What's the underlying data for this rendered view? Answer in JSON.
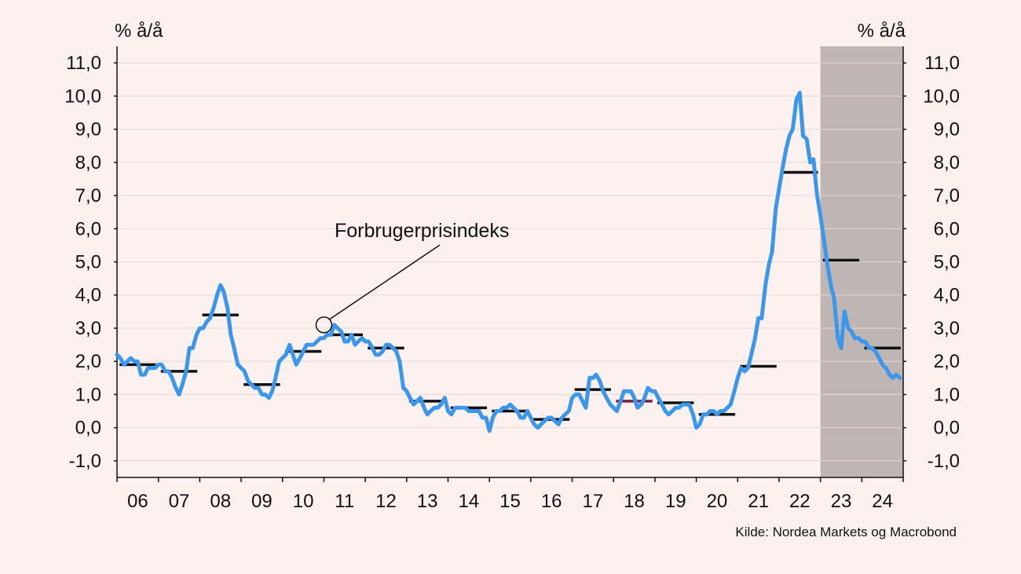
{
  "chart_data": {
    "type": "line",
    "left_unit": "% å/å",
    "right_unit": "% å/å",
    "ylim": [
      -1.5,
      11.5
    ],
    "yticks": [
      -1.0,
      0.0,
      1.0,
      2.0,
      3.0,
      4.0,
      5.0,
      6.0,
      7.0,
      8.0,
      9.0,
      10.0,
      11.0
    ],
    "ytick_labels": [
      "-1,0",
      "0,0",
      "1,0",
      "2,0",
      "3,0",
      "4,0",
      "5,0",
      "6,0",
      "7,0",
      "8,0",
      "9,0",
      "10,0",
      "11,0"
    ],
    "xlim": [
      2006.0,
      2025.0
    ],
    "xtick_labels": [
      "06",
      "07",
      "08",
      "09",
      "10",
      "11",
      "12",
      "13",
      "14",
      "15",
      "16",
      "17",
      "18",
      "19",
      "20",
      "21",
      "22",
      "23",
      "24"
    ],
    "grid": true,
    "shaded_region": {
      "from": 2023.0,
      "to": 2025.0,
      "color": "#bfb5b2"
    },
    "annotation": {
      "text": "Forbrugerprisindeks",
      "point": [
        2011.0,
        3.1
      ]
    },
    "source": "Kilde: Nordea Markets og Macrobond",
    "colors": {
      "line": "#3b97ec",
      "annual_avg": "#111111",
      "highlight_avg": "#7a1f3d"
    },
    "series": [
      {
        "x": [
          2006.0,
          2006.08,
          2006.17,
          2006.25,
          2006.33,
          2006.42,
          2006.5,
          2006.58,
          2006.67,
          2006.75,
          2006.83,
          2006.92,
          2007.0,
          2007.08,
          2007.17,
          2007.25,
          2007.33,
          2007.42,
          2007.5,
          2007.58,
          2007.67,
          2007.75,
          2007.83,
          2007.92,
          2008.0,
          2008.08,
          2008.17,
          2008.25,
          2008.33,
          2008.42,
          2008.5,
          2008.58,
          2008.67,
          2008.75,
          2008.83,
          2008.92,
          2009.0,
          2009.08,
          2009.17,
          2009.25,
          2009.33,
          2009.42,
          2009.5,
          2009.58,
          2009.67,
          2009.75,
          2009.83,
          2009.92,
          2010.0,
          2010.08,
          2010.17,
          2010.25,
          2010.33,
          2010.42,
          2010.5,
          2010.58,
          2010.67,
          2010.75,
          2010.83,
          2010.92,
          2011.0,
          2011.08,
          2011.17,
          2011.25,
          2011.33,
          2011.42,
          2011.5,
          2011.58,
          2011.67,
          2011.75,
          2011.83,
          2011.92,
          2012.0,
          2012.08,
          2012.17,
          2012.25,
          2012.33,
          2012.42,
          2012.5,
          2012.58,
          2012.67,
          2012.75,
          2012.83,
          2012.92,
          2013.0,
          2013.08,
          2013.17,
          2013.25,
          2013.33,
          2013.42,
          2013.5,
          2013.58,
          2013.67,
          2013.75,
          2013.83,
          2013.92,
          2014.0,
          2014.08,
          2014.17,
          2014.25,
          2014.33,
          2014.42,
          2014.5,
          2014.58,
          2014.67,
          2014.75,
          2014.83,
          2014.92,
          2015.0,
          2015.08,
          2015.17,
          2015.25,
          2015.33,
          2015.42,
          2015.5,
          2015.58,
          2015.67,
          2015.75,
          2015.83,
          2015.92,
          2016.0,
          2016.08,
          2016.17,
          2016.25,
          2016.33,
          2016.42,
          2016.5,
          2016.58,
          2016.67,
          2016.75,
          2016.83,
          2016.92,
          2017.0,
          2017.08,
          2017.17,
          2017.25,
          2017.33,
          2017.42,
          2017.5,
          2017.58,
          2017.67,
          2017.75,
          2017.83,
          2017.92,
          2018.0,
          2018.08,
          2018.17,
          2018.25,
          2018.33,
          2018.42,
          2018.5,
          2018.58,
          2018.67,
          2018.75,
          2018.83,
          2018.92,
          2019.0,
          2019.08,
          2019.17,
          2019.25,
          2019.33,
          2019.42,
          2019.5,
          2019.58,
          2019.67,
          2019.75,
          2019.83,
          2019.92,
          2020.0,
          2020.08,
          2020.17,
          2020.25,
          2020.33,
          2020.42,
          2020.5,
          2020.58,
          2020.67,
          2020.75,
          2020.83,
          2020.92,
          2021.0,
          2021.08,
          2021.17,
          2021.25,
          2021.33,
          2021.42,
          2021.5,
          2021.58,
          2021.67,
          2021.75,
          2021.83,
          2021.92,
          2022.0,
          2022.08,
          2022.17,
          2022.25,
          2022.33,
          2022.42,
          2022.5,
          2022.58,
          2022.67,
          2022.75,
          2022.83,
          2022.92,
          2023.0,
          2023.08,
          2023.17,
          2023.25,
          2023.33,
          2023.42,
          2023.5,
          2023.58,
          2023.67,
          2023.75,
          2023.83,
          2023.92,
          2024.0,
          2024.08,
          2024.17,
          2024.25,
          2024.33,
          2024.42,
          2024.5,
          2024.58,
          2024.67,
          2024.75,
          2024.83,
          2024.92
        ],
        "values": [
          2.2,
          2.1,
          1.9,
          2.0,
          2.1,
          2.0,
          2.0,
          1.6,
          1.6,
          1.8,
          1.8,
          1.8,
          1.9,
          1.9,
          1.7,
          1.7,
          1.5,
          1.2,
          1.0,
          1.3,
          1.7,
          2.4,
          2.4,
          2.8,
          3.0,
          3.0,
          3.2,
          3.3,
          3.6,
          4.0,
          4.3,
          4.1,
          3.6,
          2.8,
          2.4,
          1.9,
          1.8,
          1.7,
          1.4,
          1.3,
          1.2,
          1.2,
          1.0,
          1.0,
          0.9,
          1.1,
          1.5,
          2.0,
          2.1,
          2.2,
          2.5,
          2.2,
          1.9,
          2.1,
          2.3,
          2.5,
          2.5,
          2.5,
          2.6,
          2.7,
          2.7,
          2.8,
          2.8,
          3.1,
          3.0,
          2.9,
          2.6,
          2.6,
          2.8,
          2.5,
          2.6,
          2.7,
          2.6,
          2.6,
          2.4,
          2.2,
          2.2,
          2.3,
          2.5,
          2.5,
          2.4,
          2.3,
          2.0,
          1.2,
          1.1,
          0.9,
          0.7,
          0.8,
          0.9,
          0.6,
          0.4,
          0.5,
          0.6,
          0.6,
          0.7,
          0.9,
          0.5,
          0.4,
          0.6,
          0.6,
          0.6,
          0.6,
          0.5,
          0.5,
          0.5,
          0.5,
          0.3,
          0.3,
          -0.1,
          0.3,
          0.5,
          0.5,
          0.6,
          0.6,
          0.7,
          0.6,
          0.5,
          0.3,
          0.3,
          0.5,
          0.3,
          0.1,
          0.0,
          0.1,
          0.2,
          0.3,
          0.3,
          0.2,
          0.1,
          0.3,
          0.4,
          0.5,
          0.9,
          1.0,
          1.0,
          0.8,
          0.6,
          1.5,
          1.5,
          1.6,
          1.4,
          1.1,
          0.9,
          0.7,
          0.6,
          0.5,
          0.8,
          1.1,
          1.1,
          1.1,
          0.9,
          0.6,
          0.7,
          0.9,
          1.2,
          1.1,
          1.1,
          0.9,
          0.7,
          0.5,
          0.4,
          0.5,
          0.6,
          0.6,
          0.7,
          0.7,
          0.7,
          0.4,
          0.0,
          0.1,
          0.4,
          0.4,
          0.5,
          0.5,
          0.4,
          0.5,
          0.5,
          0.6,
          0.7,
          1.1,
          1.5,
          1.8,
          1.7,
          1.8,
          2.2,
          2.7,
          3.3,
          3.3,
          4.3,
          4.9,
          5.3,
          6.6,
          7.2,
          7.8,
          8.4,
          8.8,
          9.0,
          9.9,
          10.1,
          8.8,
          8.7,
          8.0,
          8.1,
          7.0,
          6.4,
          5.7,
          4.9,
          4.3,
          3.9,
          2.7,
          2.4,
          3.5,
          3.0,
          2.9,
          2.7,
          2.7,
          2.6,
          2.6,
          2.4,
          2.4,
          2.3,
          2.1,
          1.9,
          1.8,
          1.6,
          1.5,
          1.6,
          1.5
        ]
      }
    ],
    "annual_averages": [
      {
        "year": 2006,
        "value": 1.9
      },
      {
        "year": 2007,
        "value": 1.7
      },
      {
        "year": 2008,
        "value": 3.4
      },
      {
        "year": 2009,
        "value": 1.3
      },
      {
        "year": 2010,
        "value": 2.3
      },
      {
        "year": 2011,
        "value": 2.8
      },
      {
        "year": 2012,
        "value": 2.4
      },
      {
        "year": 2013,
        "value": 0.8
      },
      {
        "year": 2014,
        "value": 0.6
      },
      {
        "year": 2015,
        "value": 0.5
      },
      {
        "year": 2016,
        "value": 0.25
      },
      {
        "year": 2017,
        "value": 1.15
      },
      {
        "year": 2018,
        "value": 0.8,
        "highlight": true
      },
      {
        "year": 2019,
        "value": 0.75
      },
      {
        "year": 2020,
        "value": 0.4
      },
      {
        "year": 2021,
        "value": 1.85
      },
      {
        "year": 2022,
        "value": 7.7
      },
      {
        "year": 2023,
        "value": 5.05
      },
      {
        "year": 2024,
        "value": 2.4
      }
    ]
  }
}
